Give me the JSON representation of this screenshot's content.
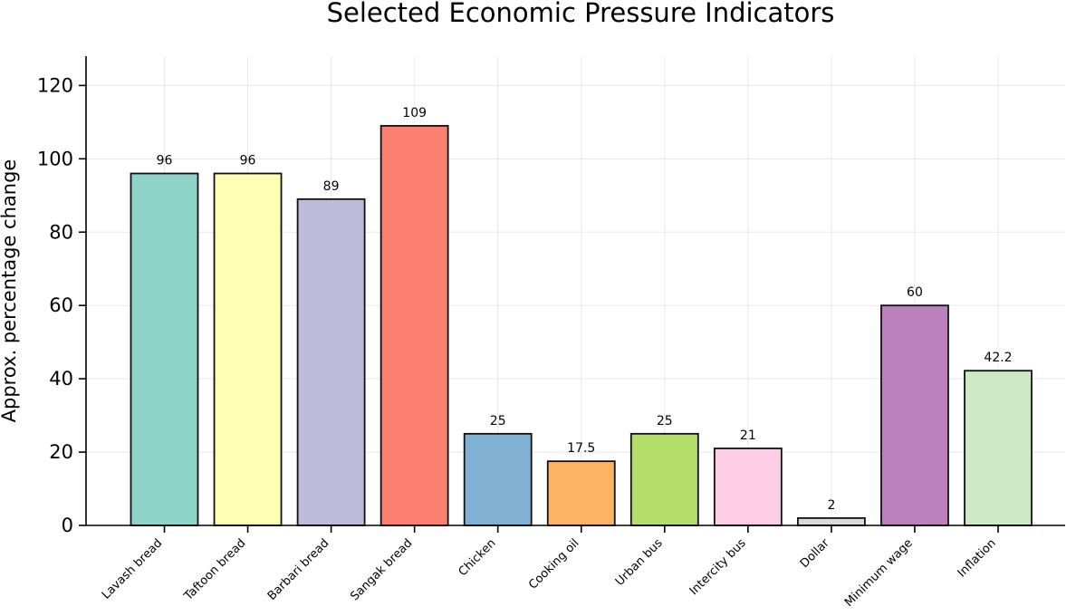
{
  "chart_data": {
    "type": "bar",
    "title": "Selected Economic Pressure Indicators",
    "xlabel": "",
    "ylabel": "Approx. percentage change",
    "ylim": [
      0,
      128
    ],
    "yticks": [
      0,
      20,
      40,
      60,
      80,
      100,
      120
    ],
    "grid": true,
    "categories": [
      "Lavash bread",
      "Taftoon bread",
      "Barbari bread",
      "Sangak bread",
      "Chicken",
      "Cooking oil",
      "Urban bus",
      "Intercity bus",
      "Dollar",
      "Minimum wage",
      "Inflation"
    ],
    "values": [
      96,
      96,
      89,
      109,
      25,
      17.5,
      25,
      21,
      2,
      60,
      42.2
    ],
    "data_labels": [
      "96",
      "96",
      "89",
      "109",
      "25",
      "17.5",
      "25",
      "21",
      "2",
      "60",
      "42.2"
    ],
    "colors": [
      "#8dd3c7",
      "#ffffb3",
      "#bebada",
      "#fb8072",
      "#80b1d3",
      "#fdb462",
      "#b3de69",
      "#fccde5",
      "#d9d9d9",
      "#bc80bd",
      "#ccebc5"
    ]
  }
}
